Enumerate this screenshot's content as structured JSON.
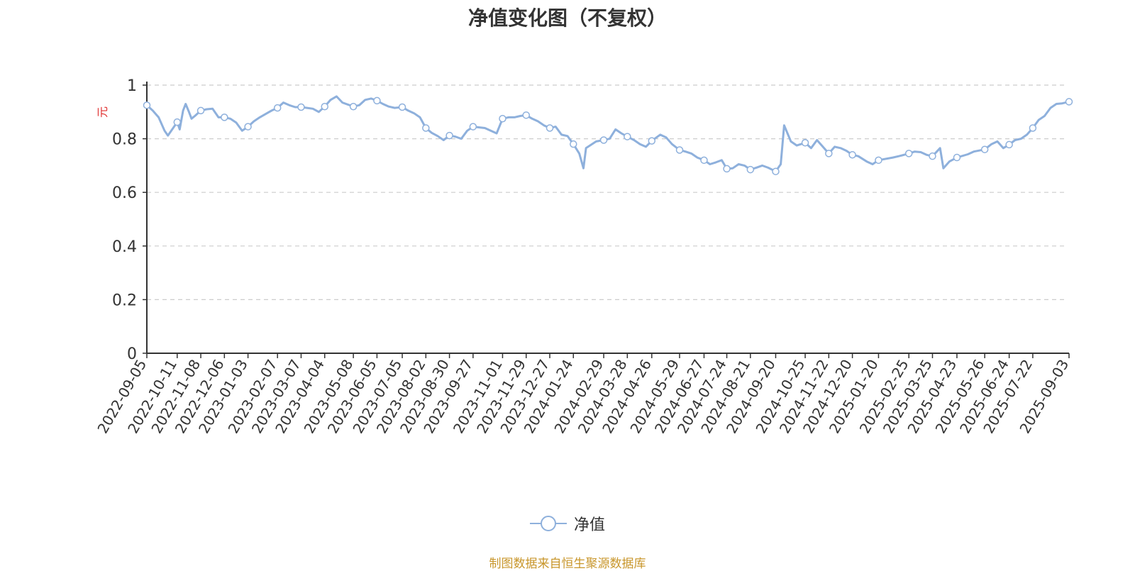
{
  "chart_data": {
    "type": "line",
    "title": "净值变化图（不复权）",
    "ylabel": "元",
    "ylim": [
      0,
      1
    ],
    "yticks": [
      "0",
      "0.2",
      "0.4",
      "0.6",
      "0.8",
      "1"
    ],
    "grid": true,
    "legend_position": "bottom-center",
    "x_tick_labels": [
      "2022-09-05",
      "2022-10-11",
      "2022-11-08",
      "2022-12-06",
      "2023-01-03",
      "2023-02-07",
      "2023-03-07",
      "2023-04-04",
      "2023-05-08",
      "2023-06-05",
      "2023-07-05",
      "2023-08-02",
      "2023-08-30",
      "2023-09-27",
      "2023-11-01",
      "2023-11-29",
      "2023-12-27",
      "2024-01-24",
      "2024-02-29",
      "2024-03-28",
      "2024-04-26",
      "2024-05-29",
      "2024-06-27",
      "2024-07-24",
      "2024-08-21",
      "2024-09-20",
      "2024-10-25",
      "2024-11-22",
      "2024-12-20",
      "2025-01-20",
      "2025-02-25",
      "2025-03-25",
      "2025-04-23",
      "2025-05-26",
      "2025-06-24",
      "2025-07-22",
      "2025-09-03"
    ],
    "series": [
      {
        "name": "净值",
        "color": "#8eb0dc",
        "points": [
          [
            "2022-09-05",
            0.925
          ],
          [
            "2022-09-12",
            0.905
          ],
          [
            "2022-09-19",
            0.88
          ],
          [
            "2022-09-26",
            0.83
          ],
          [
            "2022-09-30",
            0.812
          ],
          [
            "2022-10-11",
            0.862
          ],
          [
            "2022-10-14",
            0.835
          ],
          [
            "2022-10-18",
            0.905
          ],
          [
            "2022-10-21",
            0.93
          ],
          [
            "2022-10-25",
            0.9
          ],
          [
            "2022-10-28",
            0.875
          ],
          [
            "2022-11-01",
            0.885
          ],
          [
            "2022-11-08",
            0.905
          ],
          [
            "2022-11-15",
            0.91
          ],
          [
            "2022-11-22",
            0.912
          ],
          [
            "2022-11-29",
            0.88
          ],
          [
            "2022-12-06",
            0.88
          ],
          [
            "2022-12-13",
            0.875
          ],
          [
            "2022-12-20",
            0.86
          ],
          [
            "2022-12-27",
            0.83
          ],
          [
            "2023-01-03",
            0.845
          ],
          [
            "2023-01-10",
            0.865
          ],
          [
            "2023-01-17",
            0.88
          ],
          [
            "2023-01-31",
            0.905
          ],
          [
            "2023-02-07",
            0.915
          ],
          [
            "2023-02-14",
            0.935
          ],
          [
            "2023-02-21",
            0.925
          ],
          [
            "2023-02-28",
            0.918
          ],
          [
            "2023-03-07",
            0.918
          ],
          [
            "2023-03-14",
            0.915
          ],
          [
            "2023-03-21",
            0.912
          ],
          [
            "2023-03-28",
            0.9
          ],
          [
            "2023-04-04",
            0.92
          ],
          [
            "2023-04-11",
            0.945
          ],
          [
            "2023-04-18",
            0.958
          ],
          [
            "2023-04-25",
            0.935
          ],
          [
            "2023-05-08",
            0.92
          ],
          [
            "2023-05-15",
            0.925
          ],
          [
            "2023-05-22",
            0.945
          ],
          [
            "2023-05-29",
            0.95
          ],
          [
            "2023-06-05",
            0.942
          ],
          [
            "2023-06-12",
            0.93
          ],
          [
            "2023-06-19",
            0.92
          ],
          [
            "2023-06-26",
            0.915
          ],
          [
            "2023-07-05",
            0.918
          ],
          [
            "2023-07-12",
            0.905
          ],
          [
            "2023-07-19",
            0.895
          ],
          [
            "2023-07-26",
            0.88
          ],
          [
            "2023-08-02",
            0.84
          ],
          [
            "2023-08-09",
            0.822
          ],
          [
            "2023-08-16",
            0.81
          ],
          [
            "2023-08-23",
            0.795
          ],
          [
            "2023-08-30",
            0.812
          ],
          [
            "2023-09-06",
            0.808
          ],
          [
            "2023-09-13",
            0.8
          ],
          [
            "2023-09-20",
            0.83
          ],
          [
            "2023-09-27",
            0.845
          ],
          [
            "2023-10-11",
            0.84
          ],
          [
            "2023-10-18",
            0.83
          ],
          [
            "2023-10-25",
            0.82
          ],
          [
            "2023-11-01",
            0.875
          ],
          [
            "2023-11-08",
            0.88
          ],
          [
            "2023-11-15",
            0.88
          ],
          [
            "2023-11-22",
            0.885
          ],
          [
            "2023-11-29",
            0.888
          ],
          [
            "2023-12-06",
            0.875
          ],
          [
            "2023-12-13",
            0.865
          ],
          [
            "2023-12-20",
            0.85
          ],
          [
            "2023-12-27",
            0.84
          ],
          [
            "2024-01-03",
            0.845
          ],
          [
            "2024-01-10",
            0.815
          ],
          [
            "2024-01-17",
            0.81
          ],
          [
            "2024-01-24",
            0.78
          ],
          [
            "2024-01-31",
            0.745
          ],
          [
            "2024-02-05",
            0.69
          ],
          [
            "2024-02-08",
            0.765
          ],
          [
            "2024-02-20",
            0.79
          ],
          [
            "2024-02-29",
            0.795
          ],
          [
            "2024-03-07",
            0.8
          ],
          [
            "2024-03-14",
            0.835
          ],
          [
            "2024-03-21",
            0.82
          ],
          [
            "2024-03-28",
            0.808
          ],
          [
            "2024-04-05",
            0.795
          ],
          [
            "2024-04-12",
            0.78
          ],
          [
            "2024-04-19",
            0.77
          ],
          [
            "2024-04-26",
            0.792
          ],
          [
            "2024-05-06",
            0.815
          ],
          [
            "2024-05-13",
            0.805
          ],
          [
            "2024-05-20",
            0.78
          ],
          [
            "2024-05-29",
            0.758
          ],
          [
            "2024-06-05",
            0.752
          ],
          [
            "2024-06-12",
            0.745
          ],
          [
            "2024-06-19",
            0.73
          ],
          [
            "2024-06-27",
            0.72
          ],
          [
            "2024-07-04",
            0.705
          ],
          [
            "2024-07-11",
            0.712
          ],
          [
            "2024-07-18",
            0.72
          ],
          [
            "2024-07-24",
            0.688
          ],
          [
            "2024-07-31",
            0.69
          ],
          [
            "2024-08-07",
            0.705
          ],
          [
            "2024-08-14",
            0.7
          ],
          [
            "2024-08-21",
            0.685
          ],
          [
            "2024-08-28",
            0.692
          ],
          [
            "2024-09-04",
            0.7
          ],
          [
            "2024-09-11",
            0.692
          ],
          [
            "2024-09-20",
            0.678
          ],
          [
            "2024-09-26",
            0.705
          ],
          [
            "2024-09-30",
            0.85
          ],
          [
            "2024-10-08",
            0.79
          ],
          [
            "2024-10-15",
            0.775
          ],
          [
            "2024-10-25",
            0.785
          ],
          [
            "2024-11-01",
            0.765
          ],
          [
            "2024-11-08",
            0.795
          ],
          [
            "2024-11-15",
            0.77
          ],
          [
            "2024-11-22",
            0.745
          ],
          [
            "2024-11-29",
            0.77
          ],
          [
            "2024-12-06",
            0.765
          ],
          [
            "2024-12-13",
            0.755
          ],
          [
            "2024-12-20",
            0.74
          ],
          [
            "2024-12-27",
            0.735
          ],
          [
            "2025-01-06",
            0.715
          ],
          [
            "2025-01-13",
            0.705
          ],
          [
            "2025-01-20",
            0.72
          ],
          [
            "2025-02-06",
            0.73
          ],
          [
            "2025-02-13",
            0.735
          ],
          [
            "2025-02-25",
            0.745
          ],
          [
            "2025-03-04",
            0.752
          ],
          [
            "2025-03-11",
            0.75
          ],
          [
            "2025-03-18",
            0.74
          ],
          [
            "2025-03-25",
            0.735
          ],
          [
            "2025-04-03",
            0.765
          ],
          [
            "2025-04-07",
            0.69
          ],
          [
            "2025-04-14",
            0.715
          ],
          [
            "2025-04-23",
            0.73
          ],
          [
            "2025-05-06",
            0.742
          ],
          [
            "2025-05-13",
            0.752
          ],
          [
            "2025-05-26",
            0.76
          ],
          [
            "2025-06-03",
            0.78
          ],
          [
            "2025-06-10",
            0.79
          ],
          [
            "2025-06-17",
            0.765
          ],
          [
            "2025-06-24",
            0.778
          ],
          [
            "2025-07-01",
            0.795
          ],
          [
            "2025-07-08",
            0.8
          ],
          [
            "2025-07-15",
            0.815
          ],
          [
            "2025-07-22",
            0.84
          ],
          [
            "2025-07-29",
            0.87
          ],
          [
            "2025-08-05",
            0.885
          ],
          [
            "2025-08-12",
            0.915
          ],
          [
            "2025-08-19",
            0.93
          ],
          [
            "2025-08-26",
            0.932
          ],
          [
            "2025-09-03",
            0.938
          ]
        ],
        "marker_dates": [
          "2022-09-05",
          "2022-10-11",
          "2022-11-08",
          "2022-12-06",
          "2023-01-03",
          "2023-02-07",
          "2023-03-07",
          "2023-04-04",
          "2023-05-08",
          "2023-06-05",
          "2023-07-05",
          "2023-08-02",
          "2023-08-30",
          "2023-09-27",
          "2023-11-01",
          "2023-11-29",
          "2023-12-27",
          "2024-01-24",
          "2024-02-29",
          "2024-03-28",
          "2024-04-26",
          "2024-05-29",
          "2024-06-27",
          "2024-07-24",
          "2024-08-21",
          "2024-09-20",
          "2024-10-25",
          "2024-11-22",
          "2024-12-20",
          "2025-01-20",
          "2025-02-25",
          "2025-03-25",
          "2025-04-23",
          "2025-05-26",
          "2025-06-24",
          "2025-07-22",
          "2025-09-03"
        ]
      }
    ]
  },
  "legend": {
    "label": "净值"
  },
  "source_note": "制图数据来自恒生聚源数据库"
}
